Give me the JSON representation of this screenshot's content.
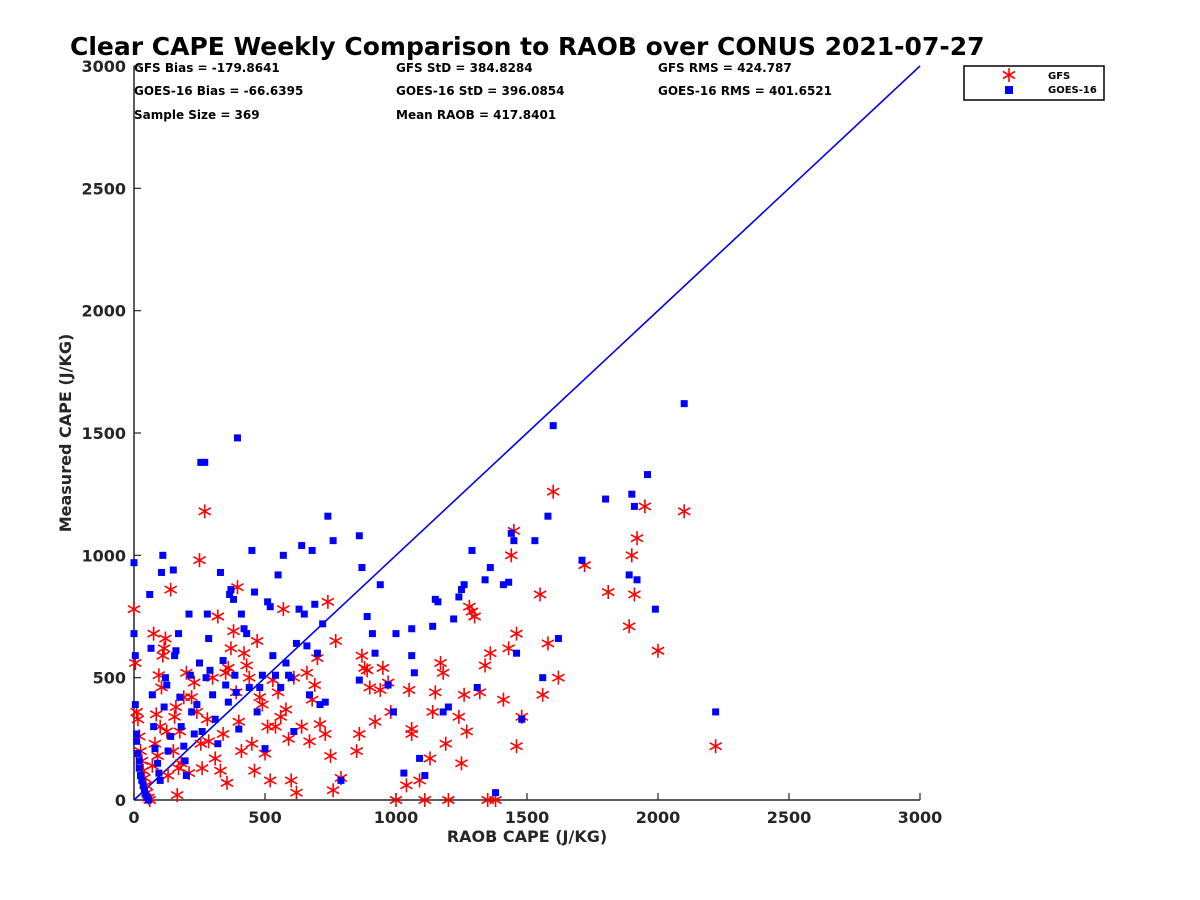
{
  "chart_data": {
    "type": "scatter",
    "title": "Clear CAPE Weekly Comparison to RAOB over CONUS 2021-07-27",
    "xlabel": "RAOB CAPE (J/KG)",
    "ylabel": "Measured CAPE (J/KG)",
    "xlim": [
      0,
      3000
    ],
    "ylim": [
      0,
      3000
    ],
    "xticks": [
      "0",
      "500",
      "1000",
      "1500",
      "2000",
      "2500",
      "3000"
    ],
    "yticks": [
      "0",
      "500",
      "1000",
      "1500",
      "2000",
      "2500",
      "3000"
    ],
    "grid": false,
    "legend_position": "top-right",
    "stats": {
      "gfs_bias": "GFS Bias = -179.8641",
      "gfs_std": "GFS StD = 384.8284",
      "gfs_rms": "GFS RMS = 424.787",
      "goes_bias": "GOES-16 Bias = -66.6395",
      "goes_std": "GOES-16 StD = 396.0854",
      "goes_rms": "GOES-16 RMS = 401.6521",
      "sample_size": "Sample Size = 369",
      "mean_raob": "Mean RAOB = 417.8401"
    },
    "reference_line": {
      "x": [
        0,
        3000
      ],
      "y": [
        0,
        3000
      ],
      "color": "#0000ee"
    },
    "series": [
      {
        "name": "GFS",
        "marker": "asterisk",
        "color": "#ff0000",
        "points": [
          [
            0,
            780
          ],
          [
            5,
            560
          ],
          [
            10,
            360
          ],
          [
            15,
            330
          ],
          [
            20,
            260
          ],
          [
            25,
            200
          ],
          [
            30,
            160
          ],
          [
            35,
            120
          ],
          [
            40,
            90
          ],
          [
            45,
            60
          ],
          [
            50,
            30
          ],
          [
            55,
            10
          ],
          [
            60,
            0
          ],
          [
            70,
            140
          ],
          [
            75,
            680
          ],
          [
            80,
            230
          ],
          [
            85,
            350
          ],
          [
            90,
            180
          ],
          [
            95,
            510
          ],
          [
            100,
            300
          ],
          [
            105,
            460
          ],
          [
            110,
            590
          ],
          [
            115,
            620
          ],
          [
            120,
            660
          ],
          [
            125,
            280
          ],
          [
            130,
            100
          ],
          [
            140,
            860
          ],
          [
            150,
            200
          ],
          [
            155,
            340
          ],
          [
            160,
            380
          ],
          [
            165,
            20
          ],
          [
            170,
            130
          ],
          [
            175,
            280
          ],
          [
            180,
            150
          ],
          [
            190,
            420
          ],
          [
            200,
            520
          ],
          [
            210,
            110
          ],
          [
            220,
            420
          ],
          [
            230,
            480
          ],
          [
            240,
            360
          ],
          [
            250,
            980
          ],
          [
            255,
            230
          ],
          [
            260,
            130
          ],
          [
            270,
            1180
          ],
          [
            280,
            330
          ],
          [
            285,
            240
          ],
          [
            300,
            500
          ],
          [
            310,
            170
          ],
          [
            320,
            750
          ],
          [
            330,
            120
          ],
          [
            340,
            270
          ],
          [
            350,
            520
          ],
          [
            355,
            70
          ],
          [
            360,
            540
          ],
          [
            370,
            620
          ],
          [
            380,
            690
          ],
          [
            390,
            440
          ],
          [
            395,
            870
          ],
          [
            400,
            320
          ],
          [
            410,
            200
          ],
          [
            420,
            600
          ],
          [
            430,
            550
          ],
          [
            440,
            500
          ],
          [
            450,
            230
          ],
          [
            460,
            120
          ],
          [
            470,
            650
          ],
          [
            480,
            420
          ],
          [
            490,
            390
          ],
          [
            500,
            190
          ],
          [
            510,
            300
          ],
          [
            520,
            80
          ],
          [
            530,
            490
          ],
          [
            540,
            300
          ],
          [
            550,
            440
          ],
          [
            560,
            340
          ],
          [
            570,
            780
          ],
          [
            580,
            370
          ],
          [
            590,
            250
          ],
          [
            600,
            80
          ],
          [
            610,
            500
          ],
          [
            620,
            30
          ],
          [
            640,
            300
          ],
          [
            660,
            520
          ],
          [
            670,
            240
          ],
          [
            680,
            410
          ],
          [
            690,
            470
          ],
          [
            700,
            580
          ],
          [
            710,
            310
          ],
          [
            730,
            270
          ],
          [
            740,
            810
          ],
          [
            750,
            180
          ],
          [
            760,
            40
          ],
          [
            770,
            650
          ],
          [
            790,
            90
          ],
          [
            850,
            200
          ],
          [
            860,
            270
          ],
          [
            870,
            590
          ],
          [
            880,
            540
          ],
          [
            890,
            530
          ],
          [
            900,
            460
          ],
          [
            920,
            320
          ],
          [
            940,
            450
          ],
          [
            950,
            540
          ],
          [
            970,
            480
          ],
          [
            980,
            360
          ],
          [
            1000,
            0
          ],
          [
            1040,
            60
          ],
          [
            1050,
            450
          ],
          [
            1060,
            290
          ],
          [
            1060,
            270
          ],
          [
            1090,
            80
          ],
          [
            1110,
            0
          ],
          [
            1130,
            170
          ],
          [
            1140,
            360
          ],
          [
            1150,
            440
          ],
          [
            1170,
            560
          ],
          [
            1180,
            520
          ],
          [
            1190,
            230
          ],
          [
            1200,
            0
          ],
          [
            1240,
            340
          ],
          [
            1250,
            150
          ],
          [
            1260,
            430
          ],
          [
            1270,
            280
          ],
          [
            1280,
            790
          ],
          [
            1290,
            770
          ],
          [
            1300,
            750
          ],
          [
            1320,
            440
          ],
          [
            1340,
            550
          ],
          [
            1350,
            0
          ],
          [
            1360,
            600
          ],
          [
            1380,
            0
          ],
          [
            1410,
            410
          ],
          [
            1430,
            620
          ],
          [
            1440,
            1000
          ],
          [
            1450,
            1100
          ],
          [
            1460,
            680
          ],
          [
            1460,
            220
          ],
          [
            1480,
            340
          ],
          [
            1550,
            840
          ],
          [
            1560,
            430
          ],
          [
            1580,
            640
          ],
          [
            1600,
            1260
          ],
          [
            1620,
            500
          ],
          [
            1720,
            960
          ],
          [
            1810,
            850
          ],
          [
            1890,
            710
          ],
          [
            1900,
            1000
          ],
          [
            1910,
            840
          ],
          [
            1920,
            1070
          ],
          [
            1950,
            1200
          ],
          [
            2000,
            610
          ],
          [
            2100,
            1180
          ],
          [
            2220,
            220
          ]
        ]
      },
      {
        "name": "GOES-16",
        "marker": "square",
        "color": "#0000ff",
        "points": [
          [
            0,
            970
          ],
          [
            0,
            680
          ],
          [
            5,
            590
          ],
          [
            5,
            390
          ],
          [
            10,
            270
          ],
          [
            10,
            240
          ],
          [
            15,
            190
          ],
          [
            20,
            160
          ],
          [
            20,
            130
          ],
          [
            25,
            100
          ],
          [
            30,
            80
          ],
          [
            35,
            60
          ],
          [
            40,
            40
          ],
          [
            45,
            20
          ],
          [
            50,
            10
          ],
          [
            55,
            0
          ],
          [
            60,
            840
          ],
          [
            65,
            620
          ],
          [
            70,
            430
          ],
          [
            75,
            300
          ],
          [
            80,
            210
          ],
          [
            90,
            150
          ],
          [
            95,
            110
          ],
          [
            100,
            80
          ],
          [
            105,
            930
          ],
          [
            110,
            1000
          ],
          [
            115,
            380
          ],
          [
            120,
            500
          ],
          [
            125,
            470
          ],
          [
            130,
            200
          ],
          [
            140,
            260
          ],
          [
            150,
            940
          ],
          [
            155,
            590
          ],
          [
            160,
            610
          ],
          [
            170,
            680
          ],
          [
            175,
            420
          ],
          [
            180,
            300
          ],
          [
            190,
            220
          ],
          [
            195,
            160
          ],
          [
            200,
            100
          ],
          [
            210,
            760
          ],
          [
            215,
            510
          ],
          [
            220,
            360
          ],
          [
            230,
            270
          ],
          [
            240,
            390
          ],
          [
            250,
            560
          ],
          [
            255,
            1380
          ],
          [
            260,
            280
          ],
          [
            270,
            1380
          ],
          [
            275,
            500
          ],
          [
            280,
            760
          ],
          [
            285,
            660
          ],
          [
            290,
            530
          ],
          [
            300,
            430
          ],
          [
            310,
            330
          ],
          [
            320,
            230
          ],
          [
            330,
            930
          ],
          [
            340,
            570
          ],
          [
            350,
            470
          ],
          [
            360,
            400
          ],
          [
            365,
            840
          ],
          [
            370,
            860
          ],
          [
            380,
            820
          ],
          [
            385,
            510
          ],
          [
            390,
            440
          ],
          [
            395,
            1480
          ],
          [
            400,
            290
          ],
          [
            410,
            760
          ],
          [
            420,
            700
          ],
          [
            430,
            680
          ],
          [
            440,
            460
          ],
          [
            450,
            1020
          ],
          [
            460,
            850
          ],
          [
            470,
            360
          ],
          [
            480,
            460
          ],
          [
            490,
            510
          ],
          [
            500,
            210
          ],
          [
            510,
            810
          ],
          [
            520,
            790
          ],
          [
            530,
            590
          ],
          [
            540,
            510
          ],
          [
            550,
            920
          ],
          [
            560,
            460
          ],
          [
            570,
            1000
          ],
          [
            580,
            560
          ],
          [
            590,
            510
          ],
          [
            600,
            500
          ],
          [
            610,
            280
          ],
          [
            620,
            640
          ],
          [
            630,
            780
          ],
          [
            640,
            1040
          ],
          [
            650,
            760
          ],
          [
            660,
            630
          ],
          [
            670,
            430
          ],
          [
            680,
            1020
          ],
          [
            690,
            800
          ],
          [
            700,
            600
          ],
          [
            710,
            390
          ],
          [
            720,
            720
          ],
          [
            730,
            400
          ],
          [
            740,
            1160
          ],
          [
            760,
            1060
          ],
          [
            790,
            80
          ],
          [
            860,
            1080
          ],
          [
            860,
            490
          ],
          [
            870,
            950
          ],
          [
            890,
            750
          ],
          [
            910,
            680
          ],
          [
            920,
            600
          ],
          [
            940,
            880
          ],
          [
            970,
            470
          ],
          [
            990,
            360
          ],
          [
            1000,
            680
          ],
          [
            1030,
            110
          ],
          [
            1060,
            700
          ],
          [
            1060,
            590
          ],
          [
            1070,
            520
          ],
          [
            1090,
            170
          ],
          [
            1110,
            100
          ],
          [
            1140,
            710
          ],
          [
            1150,
            820
          ],
          [
            1160,
            810
          ],
          [
            1180,
            360
          ],
          [
            1200,
            380
          ],
          [
            1220,
            740
          ],
          [
            1240,
            830
          ],
          [
            1250,
            860
          ],
          [
            1260,
            880
          ],
          [
            1290,
            1020
          ],
          [
            1310,
            460
          ],
          [
            1340,
            900
          ],
          [
            1360,
            950
          ],
          [
            1380,
            30
          ],
          [
            1410,
            880
          ],
          [
            1430,
            890
          ],
          [
            1440,
            1090
          ],
          [
            1450,
            1060
          ],
          [
            1460,
            600
          ],
          [
            1480,
            330
          ],
          [
            1530,
            1060
          ],
          [
            1560,
            500
          ],
          [
            1580,
            1160
          ],
          [
            1600,
            1530
          ],
          [
            1620,
            660
          ],
          [
            1710,
            980
          ],
          [
            1800,
            1230
          ],
          [
            1890,
            920
          ],
          [
            1900,
            1250
          ],
          [
            1910,
            1200
          ],
          [
            1920,
            900
          ],
          [
            1960,
            1330
          ],
          [
            1990,
            780
          ],
          [
            2100,
            1620
          ],
          [
            2220,
            360
          ]
        ]
      }
    ]
  }
}
